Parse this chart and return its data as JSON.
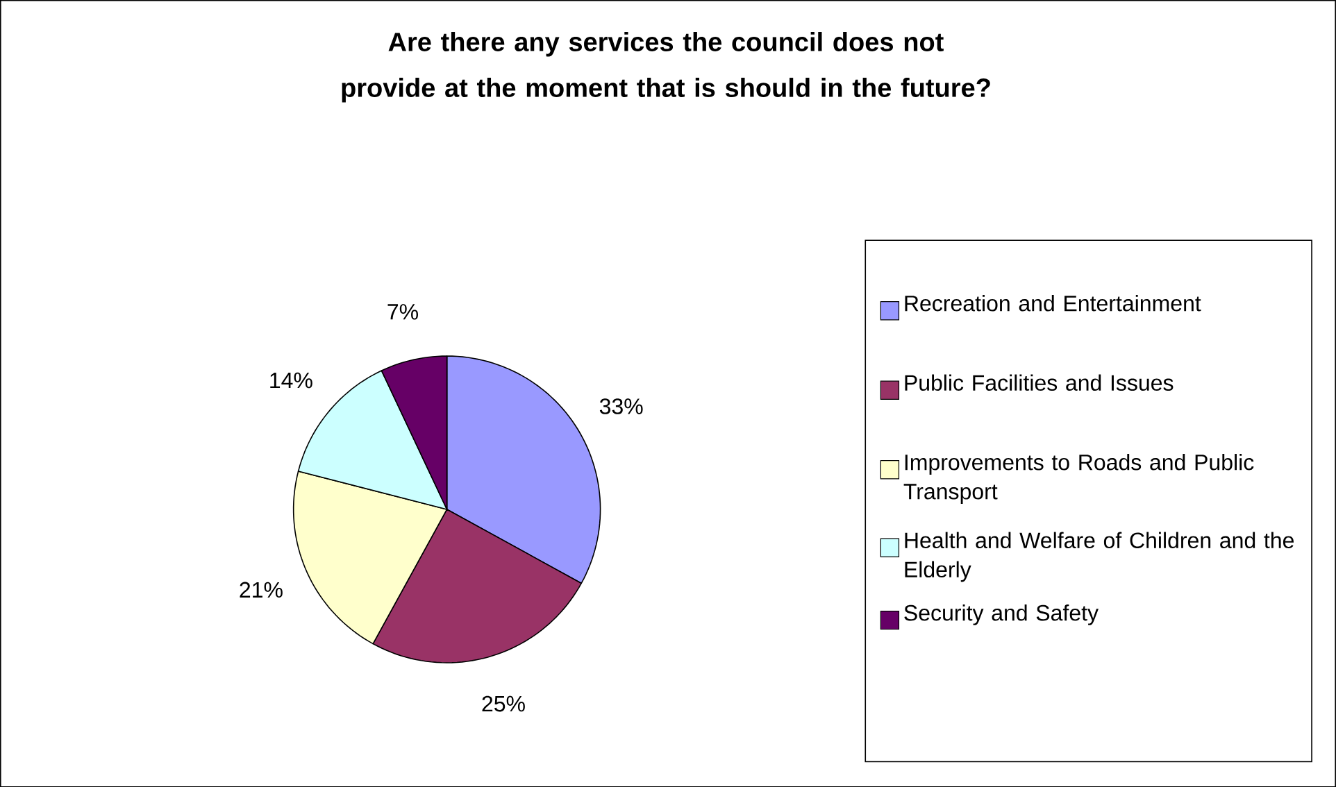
{
  "chart_data": {
    "type": "pie",
    "title": "Are there any services the council does not provide at the moment that is should in the future?",
    "categories": [
      "Recreation and Entertainment",
      "Public Facilities and Issues",
      "Improvements to Roads and Public Transport",
      "Health and Welfare of Children and the Elderly",
      "Security and Safety"
    ],
    "values": [
      33,
      25,
      21,
      14,
      7
    ],
    "value_labels": [
      "33%",
      "25%",
      "21%",
      "14%",
      "7%"
    ],
    "colors": [
      "#9999ff",
      "#993366",
      "#ffffcc",
      "#ccffff",
      "#660066"
    ],
    "legend": "right"
  }
}
